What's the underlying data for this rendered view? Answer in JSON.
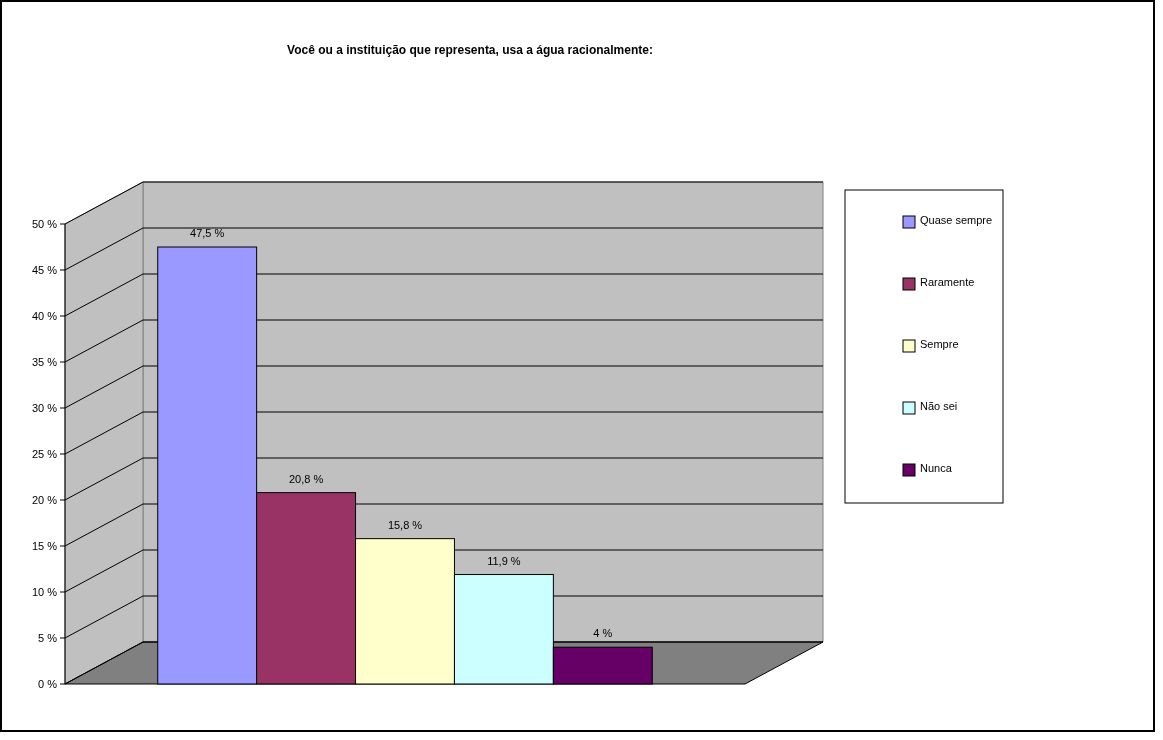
{
  "chart_data": {
    "type": "bar",
    "title": "Você ou a instituição que representa, usa a água racionalmente:",
    "categories": [
      null
    ],
    "series": [
      {
        "name": "Quase sempre",
        "color": "#9999ff",
        "values": [
          47.5
        ],
        "value_labels": [
          "47,5 %"
        ]
      },
      {
        "name": "Raramente",
        "color": "#993366",
        "values": [
          20.8
        ],
        "value_labels": [
          "20,8 %"
        ]
      },
      {
        "name": "Sempre",
        "color": "#ffffcc",
        "values": [
          15.8
        ],
        "value_labels": [
          "15,8 %"
        ]
      },
      {
        "name": "Não sei",
        "color": "#ccffff",
        "values": [
          11.9
        ],
        "value_labels": [
          "11,9 %"
        ]
      },
      {
        "name": "Nunca",
        "color": "#660066",
        "values": [
          4
        ],
        "value_labels": [
          "4 %"
        ]
      }
    ],
    "ylim": [
      0,
      50
    ],
    "yticks": [
      {
        "value": 0,
        "label": "0 %"
      },
      {
        "value": 5,
        "label": "5 %"
      },
      {
        "value": 10,
        "label": "10 %"
      },
      {
        "value": 15,
        "label": "15 %"
      },
      {
        "value": 20,
        "label": "20 %"
      },
      {
        "value": 25,
        "label": "25 %"
      },
      {
        "value": 30,
        "label": "30 %"
      },
      {
        "value": 35,
        "label": "35 %"
      },
      {
        "value": 40,
        "label": "40 %"
      },
      {
        "value": 45,
        "label": "45 %"
      },
      {
        "value": 50,
        "label": "50 %"
      }
    ],
    "grid": "y",
    "legend": "right"
  }
}
